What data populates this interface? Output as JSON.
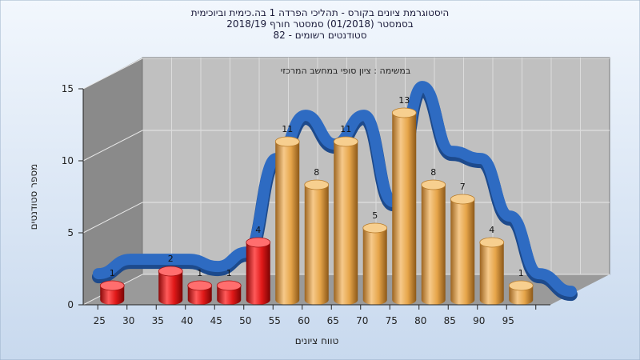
{
  "colors": {
    "background_top": "#f2f7fd",
    "background_bottom": "#c8d9ee",
    "back_wall": "#c0c0c0",
    "side_wall": "#8a8a8a",
    "floor": "#9a9a9a",
    "bar_low": "#e01818",
    "bar_high": "#e6a54a",
    "curve": "#2e6bc2"
  },
  "chart_data": {
    "type": "bar",
    "title_lines": [
      "היסטוגרמת ציונים בקורס - תהליכי הפרדה 1 בה.כימית וביוכימית",
      "בסמסטר  (01/2018)  סמסטר חורף 2018/19",
      "82 - סטודנטים רשומים"
    ],
    "subtitle": "במשימה : ציון סופי במחשב המרכזי",
    "xlabel": "טווח ציונים",
    "ylabel": "מספר סטודנטים",
    "x_ticks": [
      "25",
      "30",
      "35",
      "40",
      "45",
      "50",
      "55",
      "60",
      "65",
      "70",
      "75",
      "80",
      "85",
      "90",
      "95"
    ],
    "y_ticks": [
      "0",
      "5",
      "10",
      "15"
    ],
    "ylim": [
      0,
      15
    ],
    "categories": [
      "25",
      "35",
      "40",
      "45",
      "50",
      "55",
      "60",
      "65",
      "70",
      "75",
      "80",
      "85",
      "90",
      "95"
    ],
    "values": [
      1,
      2,
      1,
      1,
      4,
      11,
      8,
      11,
      5,
      13,
      8,
      7,
      4,
      1
    ],
    "bar_colors_by_group": [
      "low",
      "low",
      "low",
      "low",
      "low",
      "high",
      "high",
      "high",
      "high",
      "high",
      "high",
      "high",
      "high",
      "high"
    ],
    "curve": [
      2,
      2,
      1.5,
      2.5,
      9,
      12,
      10,
      12,
      6,
      14,
      9.5,
      9,
      5,
      1
    ]
  }
}
